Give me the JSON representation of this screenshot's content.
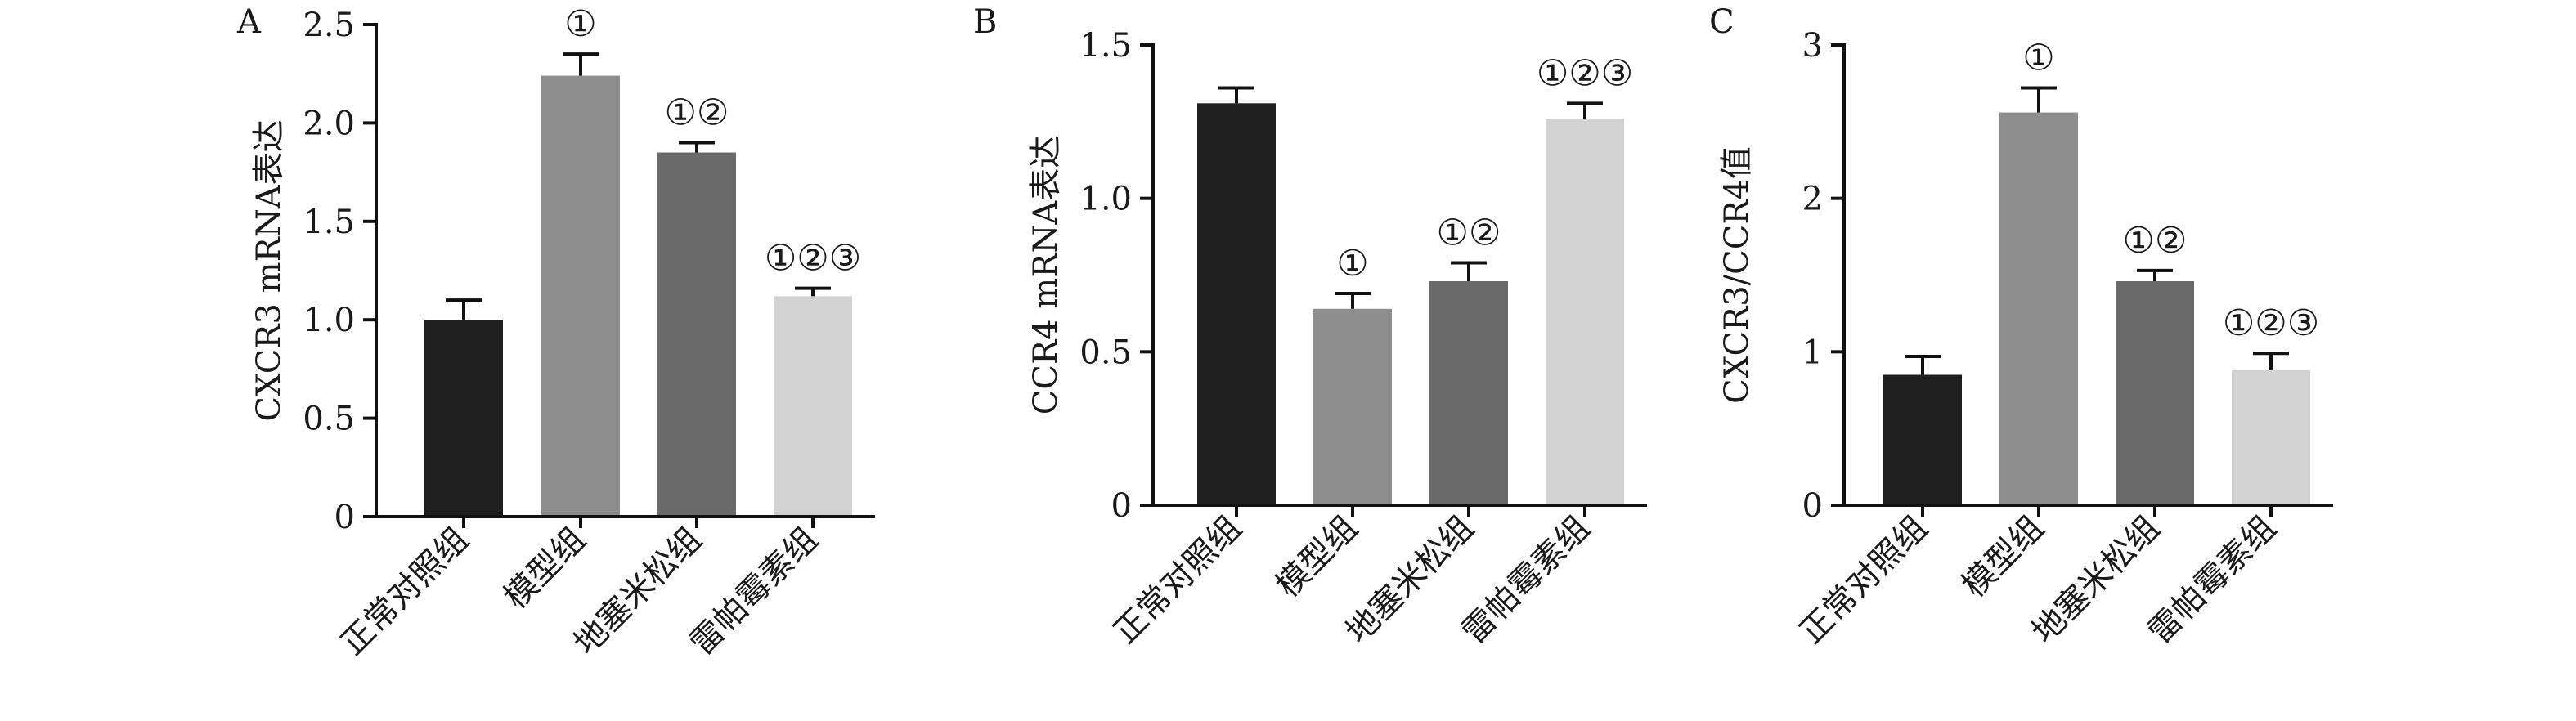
{
  "chart_data": [
    {
      "panel_label": "A",
      "type": "bar",
      "categories": [
        "正常对照组",
        "模型组",
        "地塞米松组",
        "雷帕霉素组"
      ],
      "values": [
        1.0,
        2.24,
        1.85,
        1.12
      ],
      "errors": [
        0.1,
        0.11,
        0.05,
        0.04
      ],
      "annotations": [
        "",
        "①",
        "①②",
        "①②③"
      ],
      "ylabel": "CXCR3 mRNA表达",
      "xlabel": "",
      "ylim": [
        0,
        2.5
      ],
      "yticks": [
        0,
        0.5,
        1.0,
        1.5,
        2.0,
        2.5
      ],
      "ytick_labels": [
        "0",
        "0.5",
        "1.0",
        "1.5",
        "2.0",
        "2.5"
      ]
    },
    {
      "panel_label": "B",
      "type": "bar",
      "categories": [
        "正常对照组",
        "模型组",
        "地塞米松组",
        "雷帕霉素组"
      ],
      "values": [
        1.31,
        0.64,
        0.73,
        1.26
      ],
      "errors": [
        0.05,
        0.05,
        0.06,
        0.05
      ],
      "annotations": [
        "",
        "①",
        "①②",
        "①②③"
      ],
      "ylabel": "CCR4 mRNA表达",
      "xlabel": "",
      "ylim": [
        0,
        1.5
      ],
      "yticks": [
        0,
        0.5,
        1.0,
        1.5
      ],
      "ytick_labels": [
        "0",
        "0.5",
        "1.0",
        "1.5"
      ]
    },
    {
      "panel_label": "C",
      "type": "bar",
      "categories": [
        "正常对照组",
        "模型组",
        "地塞米松组",
        "雷帕霉素组"
      ],
      "values": [
        0.85,
        2.56,
        1.46,
        0.88
      ],
      "errors": [
        0.12,
        0.16,
        0.07,
        0.11
      ],
      "annotations": [
        "",
        "①",
        "①②",
        "①②③"
      ],
      "ylabel": "CXCR3/CCR4值",
      "xlabel": "",
      "ylim": [
        0,
        3
      ],
      "yticks": [
        0,
        1,
        2,
        3
      ],
      "ytick_labels": [
        "0",
        "1",
        "2",
        "3"
      ]
    }
  ],
  "colors": {
    "bars": [
      "#1f1f1f",
      "#8e8e8e",
      "#6a6a6a",
      "#d2d2d2"
    ],
    "axis": "#111111"
  }
}
